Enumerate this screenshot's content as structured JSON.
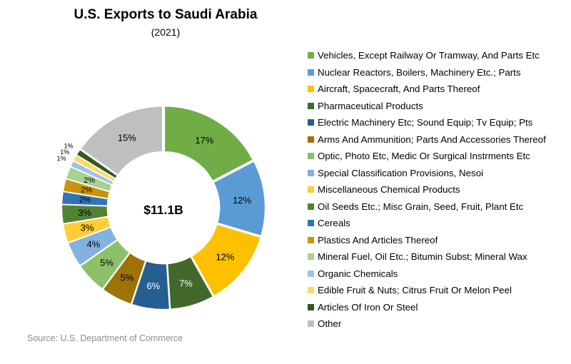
{
  "chart_data": {
    "type": "pie",
    "title": "U.S. Exports to Saudi Arabia",
    "subtitle": "(2021)",
    "center_label": "$11.1B",
    "source": "Source: U.S. Department of Commerce",
    "legend_position": "right",
    "slices": [
      {
        "label": "Vehicles, Except Railway Or Tramway, And Parts Etc",
        "value": 17,
        "display": "17%",
        "color": "#70AD47"
      },
      {
        "label": "Nuclear Reactors, Boilers, Machinery Etc.; Parts",
        "value": 12,
        "display": "12%",
        "color": "#5B9BD5"
      },
      {
        "label": "Aircraft, Spacecraft, And Parts Thereof",
        "value": 12,
        "display": "12%",
        "color": "#FFC000"
      },
      {
        "label": "Pharmaceutical Products",
        "value": 7,
        "display": "7%",
        "color": "#43682B"
      },
      {
        "label": "Electric Machinery Etc; Sound Equip; Tv Equip; Pts",
        "value": 6,
        "display": "6%",
        "color": "#255E91"
      },
      {
        "label": "Arms And Ammunition; Parts And Accessories Thereof",
        "value": 5,
        "display": "5%",
        "color": "#9E7203"
      },
      {
        "label": "Optic, Photo Etc, Medic Or Surgical Instrments Etc",
        "value": 5,
        "display": "5%",
        "color": "#8CC168"
      },
      {
        "label": "Special Classification Provisions, Nesoi",
        "value": 4,
        "display": "4%",
        "color": "#84B1DE"
      },
      {
        "label": "Miscellaneous Chemical Products",
        "value": 3,
        "display": "3%",
        "color": "#FFCD35"
      },
      {
        "label": "Oil Seeds Etc.; Misc Grain, Seed, Fruit, Plant Etc",
        "value": 3,
        "display": "3%",
        "color": "#548235"
      },
      {
        "label": "Cereals",
        "value": 2,
        "display": "2%",
        "color": "#2E75B6"
      },
      {
        "label": "Plastics And Articles Thereof",
        "value": 2,
        "display": "2%",
        "color": "#C9930A"
      },
      {
        "label": "Mineral Fuel, Oil Etc.; Bitumin Subst; Mineral Wax",
        "value": 2,
        "display": "2%",
        "color": "#A9D18E"
      },
      {
        "label": "Organic Chemicals",
        "value": 1,
        "display": "1%",
        "color": "#9DC3E6"
      },
      {
        "label": "Edible Fruit & Nuts; Citrus Fruit Or Melon Peel",
        "value": 1,
        "display": "1%",
        "color": "#FFD966"
      },
      {
        "label": "Articles Of Iron Or Steel",
        "value": 1,
        "display": "1%",
        "color": "#375623"
      },
      {
        "label": "Other",
        "value": 15,
        "display": "15%",
        "color": "#BFBFBF"
      }
    ]
  }
}
